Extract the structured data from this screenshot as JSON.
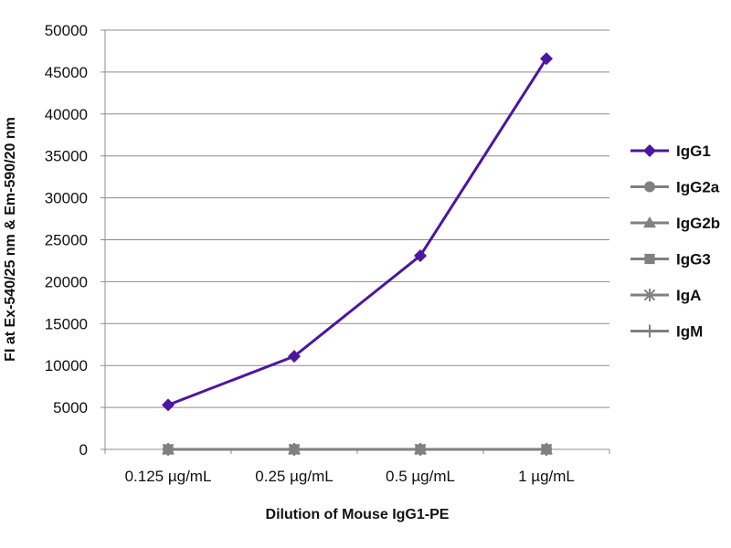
{
  "chart_data": {
    "type": "line",
    "categories": [
      "0.125 µg/mL",
      "0.25 µg/mL",
      "0.5 µg/mL",
      "1 µg/mL"
    ],
    "xlabel": "Dilution of Mouse IgG1-PE",
    "ylabel": "FI at Ex-540/25 nm & Em-590/20 nm",
    "ylim": [
      0,
      50000
    ],
    "yticks": [
      0,
      5000,
      10000,
      15000,
      20000,
      25000,
      30000,
      35000,
      40000,
      45000,
      50000
    ],
    "grid": "horizontal",
    "legend_position": "right",
    "series": [
      {
        "name": "IgG1",
        "values": [
          5300,
          11100,
          23100,
          46600
        ],
        "color": "#4b16a0",
        "marker": "diamond"
      },
      {
        "name": "IgG2a",
        "values": [
          0,
          0,
          0,
          0
        ],
        "color": "#808080",
        "marker": "circle"
      },
      {
        "name": "IgG2b",
        "values": [
          0,
          0,
          0,
          0
        ],
        "color": "#808080",
        "marker": "triangle"
      },
      {
        "name": "IgG3",
        "values": [
          0,
          0,
          0,
          0
        ],
        "color": "#808080",
        "marker": "square"
      },
      {
        "name": "IgA",
        "values": [
          0,
          0,
          0,
          0
        ],
        "color": "#808080",
        "marker": "star"
      },
      {
        "name": "IgM",
        "values": [
          0,
          0,
          0,
          0
        ],
        "color": "#808080",
        "marker": "plus"
      }
    ]
  }
}
